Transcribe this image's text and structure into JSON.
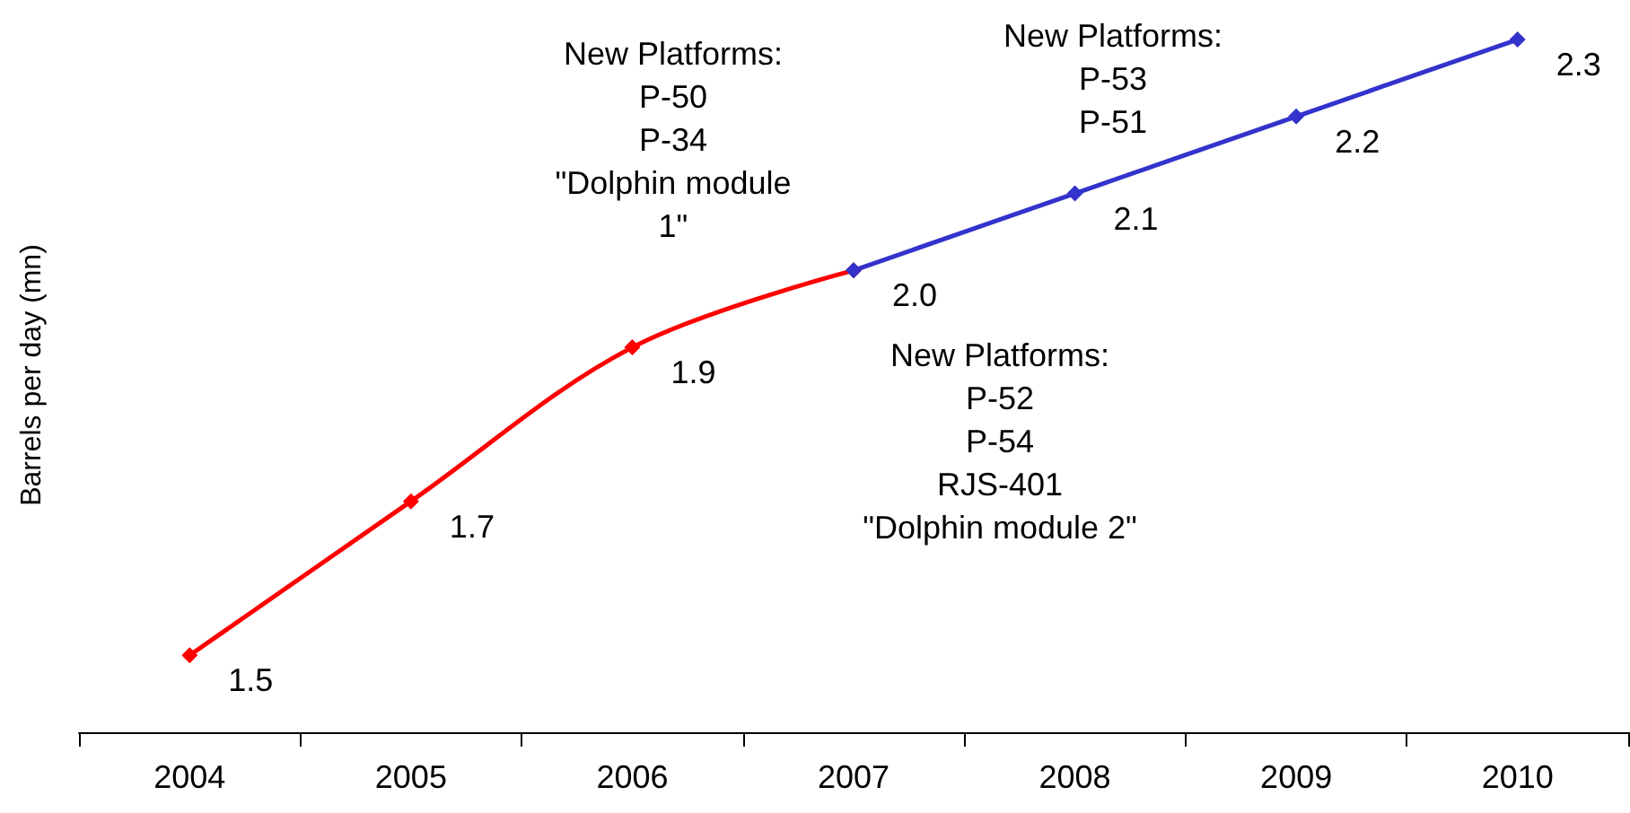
{
  "chart_data": {
    "type": "line",
    "ylabel": "Barrels per day (mn)",
    "categories": [
      "2004",
      "2005",
      "2006",
      "2007",
      "2008",
      "2009",
      "2010"
    ],
    "series": [
      {
        "color": "#ff0000",
        "values": [
          1.5,
          1.7,
          1.9,
          2.0,
          null,
          null,
          null
        ],
        "value_labels": [
          "1.5",
          "1.7",
          "1.9",
          "2.0",
          null,
          null,
          null
        ]
      },
      {
        "color": "#3333cc",
        "values": [
          null,
          null,
          null,
          2.0,
          2.1,
          2.2,
          2.3
        ],
        "value_labels": [
          null,
          null,
          null,
          null,
          "2.1",
          "2.2",
          "2.3"
        ]
      }
    ],
    "annotations": [
      "New Platforms:\nP-50\nP-34\n\"Dolphin module\n1\"",
      "New Platforms:\nP-53\nP-51",
      "New Platforms:\nP-52\nP-54\nRJS-401\n\"Dolphin module 2\""
    ],
    "marker": "diamond",
    "grid": false
  }
}
